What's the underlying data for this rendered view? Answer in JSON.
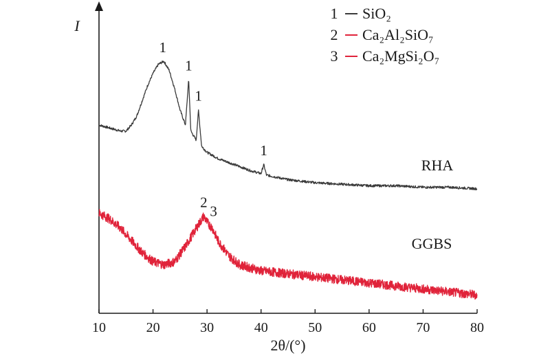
{
  "chart_data": {
    "type": "line",
    "xlabel": "2θ/(°)",
    "ylabel": "I",
    "xlim": [
      10,
      80
    ],
    "x_ticks": [
      10,
      20,
      30,
      40,
      50,
      60,
      70,
      80
    ],
    "y_ticks_shown": false,
    "grid": false,
    "legend_position": "top-right",
    "legend": [
      {
        "marker": "1",
        "label": "SiO₂",
        "color": "#3a3a3a"
      },
      {
        "marker": "2",
        "label": "Ca₂Al₂SiO₇",
        "color": "#e0233a"
      },
      {
        "marker": "3",
        "label": "Ca₂MgSi₂O₇",
        "color": "#e0233a"
      }
    ],
    "series": [
      {
        "name": "RHA",
        "color": "#3a3a3a",
        "x": [
          10,
          12,
          14,
          15,
          16,
          17,
          18,
          19,
          20,
          21,
          22,
          23,
          24,
          25,
          26,
          26.6,
          27,
          28,
          28.4,
          29,
          30,
          32,
          35,
          38,
          40,
          40.5,
          41,
          45,
          50,
          55,
          60,
          65,
          70,
          75,
          80
        ],
        "y": [
          0.62,
          0.61,
          0.6,
          0.6,
          0.62,
          0.65,
          0.7,
          0.75,
          0.79,
          0.82,
          0.83,
          0.8,
          0.74,
          0.67,
          0.62,
          0.77,
          0.6,
          0.57,
          0.67,
          0.55,
          0.53,
          0.51,
          0.49,
          0.47,
          0.46,
          0.49,
          0.455,
          0.44,
          0.43,
          0.425,
          0.42,
          0.42,
          0.415,
          0.415,
          0.41
        ]
      },
      {
        "name": "GGBS",
        "color": "#e0233a",
        "x": [
          10,
          12,
          14,
          16,
          18,
          20,
          22,
          24,
          26,
          28,
          29.4,
          30,
          31,
          32,
          34,
          36,
          40,
          45,
          50,
          55,
          60,
          65,
          70,
          75,
          80
        ],
        "y": [
          0.33,
          0.31,
          0.28,
          0.24,
          0.2,
          0.17,
          0.16,
          0.17,
          0.22,
          0.28,
          0.32,
          0.3,
          0.28,
          0.24,
          0.19,
          0.16,
          0.14,
          0.13,
          0.12,
          0.11,
          0.1,
          0.09,
          0.08,
          0.07,
          0.06
        ]
      }
    ],
    "annotations": [
      {
        "text": "1",
        "x": 21.8,
        "y": 0.86
      },
      {
        "text": "1",
        "x": 26.6,
        "y": 0.8
      },
      {
        "text": "1",
        "x": 28.4,
        "y": 0.7
      },
      {
        "text": "1",
        "x": 40.5,
        "y": 0.52
      },
      {
        "text": "2",
        "x": 29.4,
        "y": 0.35
      },
      {
        "text": "3",
        "x": 31.2,
        "y": 0.32
      }
    ]
  }
}
